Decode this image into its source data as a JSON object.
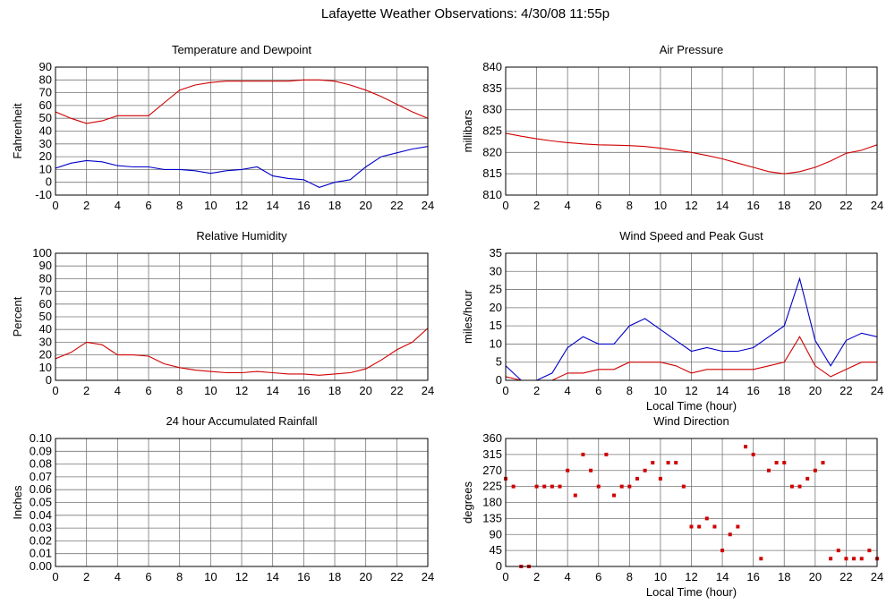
{
  "title": "Lafayette Weather Observations: 4/30/08 11:55p",
  "chart_data": [
    {
      "type": "line",
      "title": "Temperature and Dewpoint",
      "y_label": "Fahrenheit",
      "x": [
        0,
        1,
        2,
        3,
        4,
        5,
        6,
        7,
        8,
        9,
        10,
        11,
        12,
        13,
        14,
        15,
        16,
        17,
        18,
        19,
        20,
        21,
        22,
        23,
        24
      ],
      "xlim": [
        0,
        24
      ],
      "xticks": [
        0,
        2,
        4,
        6,
        8,
        10,
        12,
        14,
        16,
        18,
        20,
        22,
        24
      ],
      "ylim": [
        -10,
        90
      ],
      "yticks": [
        -10,
        0,
        10,
        20,
        30,
        40,
        50,
        60,
        70,
        80,
        90
      ],
      "grid": true,
      "series": [
        {
          "color": "#d00000",
          "values": [
            55,
            50,
            46,
            48,
            52,
            52,
            52,
            62,
            72,
            76,
            78,
            79,
            79,
            79,
            79,
            79,
            80,
            80,
            79,
            76,
            72,
            67,
            61,
            55,
            50
          ]
        },
        {
          "color": "#0000c8",
          "values": [
            11,
            15,
            17,
            16,
            13,
            12,
            12,
            10,
            10,
            9,
            7,
            9,
            10,
            12,
            5,
            3,
            2,
            -4,
            0,
            2,
            12,
            20,
            23,
            26,
            28
          ]
        }
      ]
    },
    {
      "type": "line",
      "title": "Air Pressure",
      "y_label": "millibars",
      "x": [
        0,
        1,
        2,
        3,
        4,
        5,
        6,
        7,
        8,
        9,
        10,
        11,
        12,
        13,
        14,
        15,
        16,
        17,
        18,
        19,
        20,
        21,
        22,
        23,
        24
      ],
      "xlim": [
        0,
        24
      ],
      "xticks": [
        0,
        2,
        4,
        6,
        8,
        10,
        12,
        14,
        16,
        18,
        20,
        22,
        24
      ],
      "ylim": [
        810,
        840
      ],
      "yticks": [
        810,
        815,
        820,
        825,
        830,
        835,
        840
      ],
      "grid": true,
      "series": [
        {
          "color": "#d00000",
          "values": [
            824.5,
            823.8,
            823.2,
            822.7,
            822.3,
            822,
            821.8,
            821.7,
            821.6,
            821.4,
            821,
            820.5,
            820,
            819.3,
            818.5,
            817.5,
            816.5,
            815.5,
            815,
            815.5,
            816.5,
            818,
            819.8,
            820.5,
            821.8
          ]
        }
      ]
    },
    {
      "type": "line",
      "title": "Relative Humidity",
      "y_label": "Percent",
      "x": [
        0,
        1,
        2,
        3,
        4,
        5,
        6,
        7,
        8,
        9,
        10,
        11,
        12,
        13,
        14,
        15,
        16,
        17,
        18,
        19,
        20,
        21,
        22,
        23,
        24
      ],
      "xlim": [
        0,
        24
      ],
      "xticks": [
        0,
        2,
        4,
        6,
        8,
        10,
        12,
        14,
        16,
        18,
        20,
        22,
        24
      ],
      "ylim": [
        0,
        100
      ],
      "yticks": [
        0,
        10,
        20,
        30,
        40,
        50,
        60,
        70,
        80,
        90,
        100
      ],
      "grid": true,
      "series": [
        {
          "color": "#d00000",
          "values": [
            17,
            22,
            30,
            28,
            20,
            20,
            19,
            13,
            10,
            8,
            7,
            6,
            6,
            7,
            6,
            5,
            5,
            4,
            5,
            6,
            9,
            16,
            24,
            30,
            41
          ]
        }
      ]
    },
    {
      "type": "line",
      "title": "Wind Speed and Peak Gust",
      "y_label": "miles/hour",
      "x_label": "Local Time (hour)",
      "x": [
        0,
        1,
        2,
        3,
        4,
        5,
        6,
        7,
        8,
        9,
        10,
        11,
        12,
        13,
        14,
        15,
        16,
        17,
        18,
        19,
        20,
        21,
        22,
        23,
        24
      ],
      "xlim": [
        0,
        24
      ],
      "xticks": [
        0,
        2,
        4,
        6,
        8,
        10,
        12,
        14,
        16,
        18,
        20,
        22,
        24
      ],
      "ylim": [
        0,
        35
      ],
      "yticks": [
        0,
        5,
        10,
        15,
        20,
        25,
        30,
        35
      ],
      "grid": true,
      "series": [
        {
          "color": "#0000c8",
          "values": [
            4,
            0,
            0,
            2,
            9,
            12,
            10,
            10,
            15,
            17,
            14,
            11,
            8,
            9,
            8,
            8,
            9,
            12,
            15,
            28,
            11,
            4,
            11,
            13,
            12
          ]
        },
        {
          "color": "#d00000",
          "values": [
            1,
            0,
            0,
            0,
            2,
            2,
            3,
            3,
            5,
            5,
            5,
            4,
            2,
            3,
            3,
            3,
            3,
            4,
            5,
            12,
            4,
            1,
            3,
            5,
            5
          ]
        }
      ]
    },
    {
      "type": "line",
      "title": "24 hour Accumulated Rainfall",
      "y_label": "Inches",
      "x": [
        0,
        1,
        2,
        3,
        4,
        5,
        6,
        7,
        8,
        9,
        10,
        11,
        12,
        13,
        14,
        15,
        16,
        17,
        18,
        19,
        20,
        21,
        22,
        23,
        24
      ],
      "xlim": [
        0,
        24
      ],
      "xticks": [
        0,
        2,
        4,
        6,
        8,
        10,
        12,
        14,
        16,
        18,
        20,
        22,
        24
      ],
      "ylim": [
        0,
        0.1
      ],
      "yticks": [
        {
          "value": 0,
          "label": "0.00"
        },
        {
          "value": 0.01,
          "label": "0.01"
        },
        {
          "value": 0.02,
          "label": "0.02"
        },
        {
          "value": 0.03,
          "label": "0.03"
        },
        {
          "value": 0.04,
          "label": "0.04"
        },
        {
          "value": 0.05,
          "label": "0.05"
        },
        {
          "value": 0.06,
          "label": "0.06"
        },
        {
          "value": 0.07,
          "label": "0.07"
        },
        {
          "value": 0.08,
          "label": "0.08"
        },
        {
          "value": 0.09,
          "label": "0.09"
        },
        {
          "value": 0.1,
          "label": "0.10"
        }
      ],
      "grid": true,
      "series": [
        {
          "color": "#d00000",
          "values": [
            0,
            0,
            0,
            0,
            0,
            0,
            0,
            0,
            0,
            0,
            0,
            0,
            0,
            0,
            0,
            0,
            0,
            0,
            0,
            0,
            0,
            0,
            0,
            0,
            0
          ]
        }
      ]
    },
    {
      "type": "scatter",
      "title": "Wind Direction",
      "y_label": "degrees",
      "x_label": "Local Time (hour)",
      "x": [
        0,
        0.5,
        1,
        1.5,
        2,
        2.5,
        3,
        3.5,
        4,
        4.5,
        5,
        5.5,
        6,
        6.5,
        7,
        7.5,
        8,
        8.5,
        9,
        9.5,
        10,
        10.5,
        11,
        11.5,
        12,
        12.5,
        13,
        13.5,
        14,
        14.5,
        15,
        15.5,
        16,
        16.5,
        17,
        17.5,
        18,
        18.5,
        19,
        19.5,
        20,
        20.5,
        21,
        21.5,
        22,
        22.5,
        23,
        23.5,
        24
      ],
      "xlim": [
        0,
        24
      ],
      "xticks": [
        0,
        2,
        4,
        6,
        8,
        10,
        12,
        14,
        16,
        18,
        20,
        22,
        24
      ],
      "ylim": [
        0,
        360
      ],
      "yticks": [
        0,
        45,
        90,
        135,
        180,
        225,
        270,
        315,
        360
      ],
      "grid": true,
      "series": [
        {
          "color": "#d00000",
          "values": [
            247,
            225,
            0,
            0,
            225,
            225,
            225,
            225,
            270,
            200,
            315,
            270,
            225,
            315,
            200,
            225,
            225,
            247,
            270,
            292,
            247,
            292,
            292,
            225,
            112,
            112,
            135,
            112,
            45,
            90,
            112,
            337,
            315,
            22,
            270,
            292,
            292,
            225,
            225,
            247,
            270,
            292,
            22,
            45,
            22,
            22,
            22,
            45,
            22
          ]
        }
      ]
    }
  ]
}
